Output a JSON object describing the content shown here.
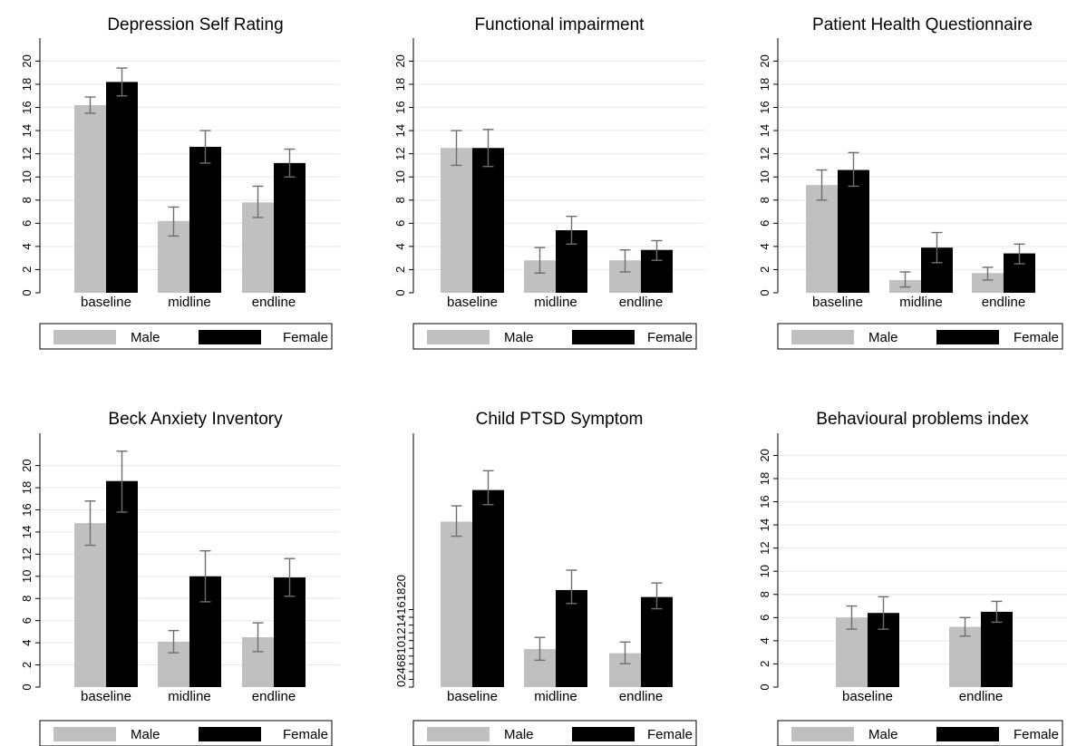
{
  "legend": {
    "male": "Male",
    "female": "Female"
  },
  "colors": {
    "male": "#c0c0c0",
    "female": "#000000",
    "grid": "#e3eef2",
    "axis": "#000000",
    "error": "#6e6e6e"
  },
  "chart_data": [
    {
      "type": "bar",
      "title": "Depression Self  Rating",
      "categories": [
        "baseline",
        "midline",
        "endline"
      ],
      "yticks": [
        0,
        2,
        4,
        6,
        8,
        10,
        12,
        14,
        16,
        18,
        20
      ],
      "ylim": [
        0,
        21
      ],
      "grid": true,
      "legend_position": "bottom",
      "series": [
        {
          "name": "Male",
          "values": [
            16.2,
            6.2,
            7.8
          ],
          "err_low": [
            15.5,
            4.9,
            6.5
          ],
          "err_high": [
            16.9,
            7.4,
            9.2
          ]
        },
        {
          "name": "Female",
          "values": [
            18.2,
            12.6,
            11.2
          ],
          "err_low": [
            17.0,
            11.2,
            10.0
          ],
          "err_high": [
            19.4,
            14.0,
            12.4
          ]
        }
      ]
    },
    {
      "type": "bar",
      "title": "Functional impairment",
      "categories": [
        "baseline",
        "midline",
        "endline"
      ],
      "yticks": [
        0,
        2,
        4,
        6,
        8,
        10,
        12,
        14,
        16,
        18,
        20
      ],
      "ylim": [
        0,
        21
      ],
      "grid": true,
      "legend_position": "bottom",
      "series": [
        {
          "name": "Male",
          "values": [
            12.5,
            2.8,
            2.8
          ],
          "err_low": [
            11.0,
            1.7,
            1.8
          ],
          "err_high": [
            14.0,
            3.9,
            3.7
          ]
        },
        {
          "name": "Female",
          "values": [
            12.5,
            5.4,
            3.7
          ],
          "err_low": [
            10.9,
            4.2,
            2.8
          ],
          "err_high": [
            14.1,
            6.6,
            4.5
          ]
        }
      ]
    },
    {
      "type": "bar",
      "title": "Patient Health Questionnaire",
      "categories": [
        "baseline",
        "midline",
        "endline"
      ],
      "yticks": [
        0,
        2,
        4,
        6,
        8,
        10,
        12,
        14,
        16,
        18,
        20
      ],
      "ylim": [
        0,
        21
      ],
      "grid": true,
      "legend_position": "bottom",
      "series": [
        {
          "name": "Male",
          "values": [
            9.3,
            1.1,
            1.7
          ],
          "err_low": [
            8.0,
            0.5,
            1.1
          ],
          "err_high": [
            10.6,
            1.8,
            2.2
          ]
        },
        {
          "name": "Female",
          "values": [
            10.6,
            3.9,
            3.4
          ],
          "err_low": [
            9.2,
            2.6,
            2.5
          ],
          "err_high": [
            12.1,
            5.2,
            4.2
          ]
        }
      ]
    },
    {
      "type": "bar",
      "title": "Beck Anxiety Inventory",
      "categories": [
        "baseline",
        "midline",
        "endline"
      ],
      "yticks": [
        0,
        2,
        4,
        6,
        8,
        10,
        12,
        14,
        16,
        18,
        20
      ],
      "ylim": [
        0,
        22.5
      ],
      "grid": true,
      "legend_position": "bottom",
      "series": [
        {
          "name": "Male",
          "values": [
            14.8,
            4.1,
            4.5
          ],
          "err_low": [
            12.8,
            3.1,
            3.2
          ],
          "err_high": [
            16.8,
            5.1,
            5.8
          ]
        },
        {
          "name": "Female",
          "values": [
            18.6,
            10.0,
            9.9
          ],
          "err_low": [
            15.8,
            7.7,
            8.2
          ],
          "err_high": [
            21.3,
            12.3,
            11.6
          ]
        }
      ]
    },
    {
      "type": "bar",
      "title": "Child PTSD Symptom",
      "categories": [
        "baseline",
        "midline",
        "endline"
      ],
      "yticks": [
        0,
        2,
        4,
        6,
        8,
        10,
        12,
        14,
        16,
        18,
        20
      ],
      "ytick_labels": [
        "0",
        "2",
        "4",
        "6",
        "8",
        "10",
        "12",
        "14",
        "16",
        "18",
        "20"
      ],
      "ylim": [
        0,
        40
      ],
      "grid": false,
      "legend_position": "bottom",
      "series": [
        {
          "name": "Male",
          "values": [
            28.3,
            6.5,
            5.8
          ],
          "err_low": [
            25.8,
            4.6,
            4.0
          ],
          "err_high": [
            31.0,
            8.5,
            7.7
          ]
        },
        {
          "name": "Female",
          "values": [
            33.7,
            16.6,
            15.4
          ],
          "err_low": [
            31.2,
            14.3,
            13.4
          ],
          "err_high": [
            37.0,
            20.0,
            17.8
          ]
        }
      ]
    },
    {
      "type": "bar",
      "title": "Behavioural problems index",
      "categories": [
        "baseline",
        "endline"
      ],
      "yticks": [
        0,
        2,
        4,
        6,
        8,
        10,
        12,
        14,
        16,
        18,
        20
      ],
      "ylim": [
        0,
        21
      ],
      "grid": true,
      "legend_position": "bottom",
      "series": [
        {
          "name": "Male",
          "values": [
            6.0,
            5.2
          ],
          "err_low": [
            5.0,
            4.4
          ],
          "err_high": [
            7.0,
            6.0
          ]
        },
        {
          "name": "Female",
          "values": [
            6.4,
            6.5
          ],
          "err_low": [
            5.0,
            5.6
          ],
          "err_high": [
            7.8,
            7.4
          ]
        }
      ]
    }
  ]
}
